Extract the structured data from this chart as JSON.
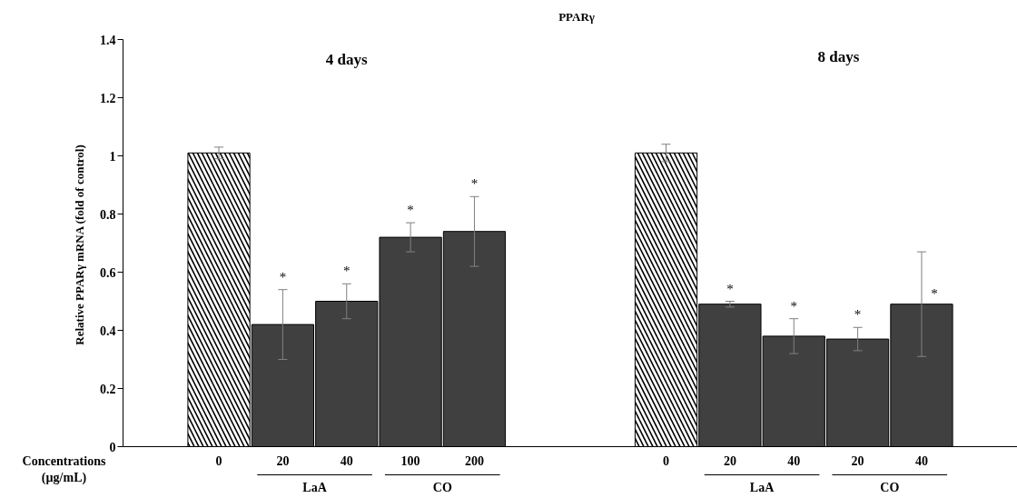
{
  "chart_data": {
    "type": "bar",
    "title": "PPARγ",
    "xlabel": "Concentrations\n(µg/mL)",
    "ylabel": "Relative PPARγ mRNA  (fold of control)",
    "categories": [
      null,
      "0",
      "20",
      "40",
      "100",
      "200",
      null,
      null,
      "0",
      "20",
      "40",
      "20",
      "40",
      null
    ],
    "values": [
      null,
      1.01,
      0.42,
      0.5,
      0.72,
      0.74,
      null,
      null,
      1.01,
      0.49,
      0.38,
      0.37,
      0.49,
      null
    ],
    "colors": [
      "#404040",
      "#ffffff",
      "#404040",
      "#404040",
      "#404040",
      "#404040",
      "#404040",
      "#404040",
      "#ffffff",
      "#404040",
      "#404040",
      "#404040",
      "#404040",
      "#404040"
    ],
    "errors": [
      null,
      [
        0.99,
        1.03
      ],
      [
        0.3,
        0.54
      ],
      [
        0.44,
        0.56
      ],
      [
        0.67,
        0.77
      ],
      [
        0.62,
        0.86
      ],
      null,
      null,
      [
        0.98,
        1.04
      ],
      [
        0.48,
        0.5
      ],
      [
        0.32,
        0.44
      ],
      [
        0.33,
        0.41
      ],
      [
        0.31,
        0.67
      ],
      null
    ],
    "value_labels": [
      null,
      null,
      "*",
      "*",
      "*",
      "*",
      null,
      null,
      null,
      "*",
      "*",
      "*",
      "*",
      null
    ],
    "ylim": [
      0,
      1.4
    ],
    "yticks": [
      0,
      0.2,
      0.4,
      0.6,
      0.8,
      1,
      1.2,
      1.4
    ],
    "annotations": [
      "4 days",
      "8 days",
      "LaA",
      "CO",
      "LaA",
      "CO"
    ]
  }
}
